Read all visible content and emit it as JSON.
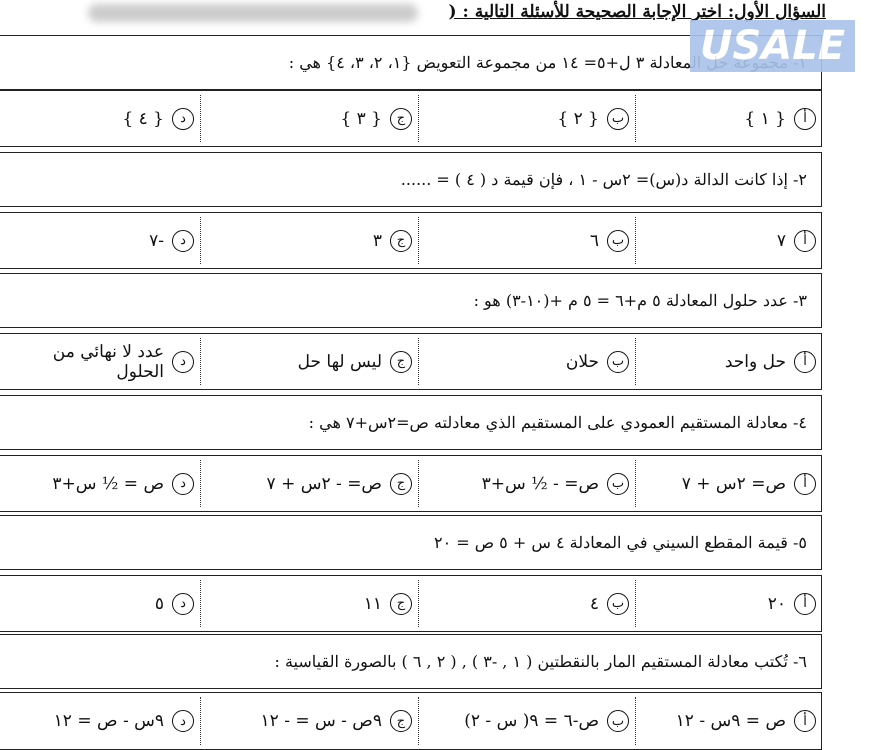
{
  "header": {
    "title": "السؤال الأول: اختر الإجابة الصحيحة للأسئلة التالية : ("
  },
  "watermark": "USALE",
  "questions": [
    {
      "text": "١- مجموعة حل المعادلة ٣ ل+٥= ١٤ من مجموعة التعويض {١، ٢، ٣، ٤} هي :",
      "options": [
        {
          "letter": "أ",
          "text": "{ ١ }"
        },
        {
          "letter": "ب",
          "text": "{ ٢ }"
        },
        {
          "letter": "ج",
          "text": "{ ٣ }"
        },
        {
          "letter": "د",
          "text": "{ ٤ }"
        }
      ]
    },
    {
      "text": "٢- إذا كانت الدالة   د(س)= ٢س - ١ ، فإن قيمة   د ( ٤ ) = ......",
      "options": [
        {
          "letter": "أ",
          "text": "٧"
        },
        {
          "letter": "ب",
          "text": "٦"
        },
        {
          "letter": "ج",
          "text": "٣"
        },
        {
          "letter": "د",
          "text": "-٧"
        }
      ]
    },
    {
      "text": "٣- عدد حلول المعادلة   ٥ م+٦ = ٥ م +(١٠-٣) هو :",
      "options": [
        {
          "letter": "أ",
          "text": "حل واحد"
        },
        {
          "letter": "ب",
          "text": "حلان"
        },
        {
          "letter": "ج",
          "text": "ليس لها حل"
        },
        {
          "letter": "د",
          "text": "عدد لا نهائي من الحلول"
        }
      ]
    },
    {
      "text": "٤- معادلة المستقيم العمودي على المستقيم الذي معادلته ص=٢س+٧ هي :",
      "options": [
        {
          "letter": "أ",
          "text": "ص= ٢س + ٧"
        },
        {
          "letter": "ب",
          "text": "ص= - ½ س+٣"
        },
        {
          "letter": "ج",
          "text": "ص= - ٢س + ٧"
        },
        {
          "letter": "د",
          "text": "ص = ½ س+٣"
        }
      ]
    },
    {
      "text": "٥- قيمة المقطع السيني في المعادلة ٤ س + ٥ ص = ٢٠",
      "options": [
        {
          "letter": "أ",
          "text": "٢٠"
        },
        {
          "letter": "ب",
          "text": "٤"
        },
        {
          "letter": "ج",
          "text": "١١"
        },
        {
          "letter": "د",
          "text": "٥"
        }
      ]
    },
    {
      "text": "٦- تُكتب معادلة المستقيم المار بالنقطتين ( ١ , -٣ ) , ( ٢ , ٦ ) بالصورة القياسية :",
      "options": [
        {
          "letter": "أ",
          "text": "ص = ٩س - ١٢"
        },
        {
          "letter": "ب",
          "text": "ص-٦ = ٩( س - ٢)"
        },
        {
          "letter": "ج",
          "text": "٩ص - س = - ١٢"
        },
        {
          "letter": "د",
          "text": "٩س - ص = ١٢"
        }
      ]
    }
  ]
}
